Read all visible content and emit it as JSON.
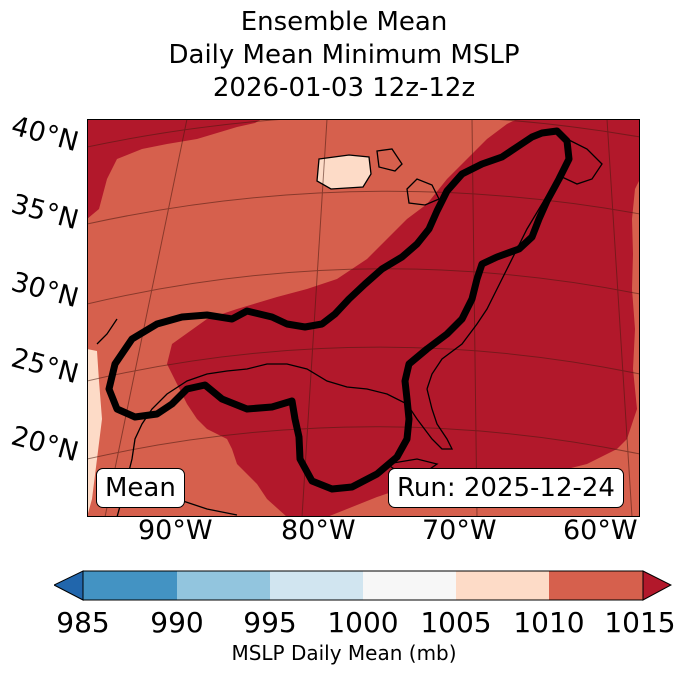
{
  "title": {
    "line1": "Ensemble Mean",
    "line2": "Daily Mean Minimum MSLP",
    "line3": "2026-01-03 12z-12z"
  },
  "map": {
    "lat_labels": [
      "40°N",
      "35°N",
      "30°N",
      "25°N",
      "20°N"
    ],
    "lon_labels": [
      "90°W",
      "80°W",
      "70°W",
      "60°W"
    ],
    "left_box": "Mean",
    "run_box": "Run: 2025-12-24"
  },
  "colorbar": {
    "label": "MSLP Daily Mean (mb)",
    "ticks": [
      "985",
      "990",
      "995",
      "1000",
      "1005",
      "1010",
      "1015"
    ],
    "colors": {
      "below": "#2166ac",
      "c985_990": "#4393c3",
      "c990_995": "#92c5de",
      "c995_1000": "#d1e5f0",
      "c1000_1005": "#f7f7f7",
      "c1005_1010": "#fddbc7",
      "c1010_1015": "#d6604d",
      "above": "#b2182b"
    }
  }
}
